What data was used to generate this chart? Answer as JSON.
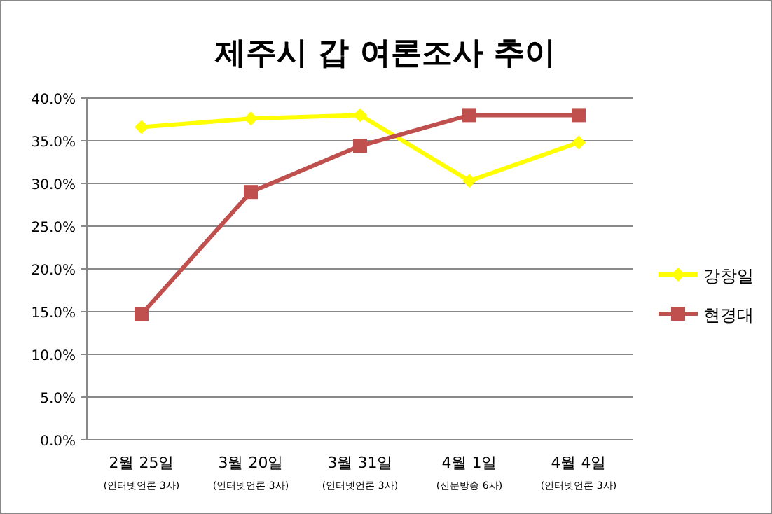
{
  "chart_data": {
    "type": "line",
    "title": "제주시 갑 여론조사 추이",
    "categories": [
      "2월 25일\n(인터넷언론 3사)",
      "3월 20일\n(인터넷언론 3사)",
      "3월 31일\n(인터넷언론 3사)",
      "4월 1일\n(신문방송 6사)",
      "4월 4일\n(인터넷언론 3사)"
    ],
    "series": [
      {
        "name": "강창일",
        "color": "#ffff00",
        "marker": "diamond",
        "values": [
          36.6,
          37.6,
          38.0,
          30.3,
          34.8
        ]
      },
      {
        "name": "현경대",
        "color": "#c0504d",
        "marker": "square",
        "values": [
          14.7,
          29.0,
          34.4,
          38.0,
          38.0
        ]
      }
    ],
    "ylim": [
      0,
      40
    ],
    "yticks": [
      {
        "value": 0,
        "label": "0.0%"
      },
      {
        "value": 5,
        "label": "5.0%"
      },
      {
        "value": 10,
        "label": "10.0%"
      },
      {
        "value": 15,
        "label": "15.0%"
      },
      {
        "value": 20,
        "label": "20.0%"
      },
      {
        "value": 25,
        "label": "25.0%"
      },
      {
        "value": 30,
        "label": "30.0%"
      },
      {
        "value": 35,
        "label": "35.0%"
      },
      {
        "value": 40,
        "label": "40.0%"
      }
    ],
    "grid": "y",
    "legend": "right"
  }
}
